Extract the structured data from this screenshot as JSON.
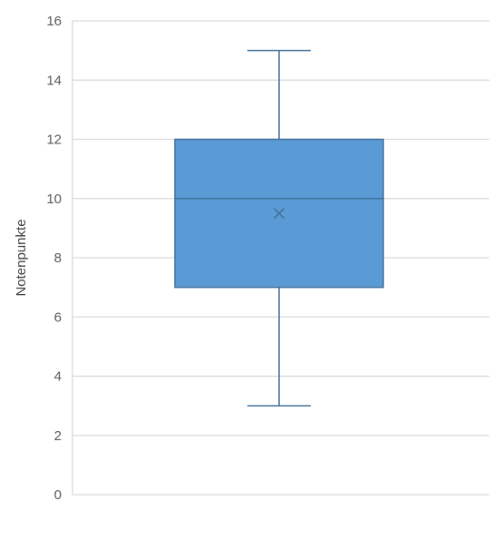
{
  "chart_data": {
    "type": "box",
    "ylabel": "Notenpunkte",
    "xlabel": "",
    "ylim": [
      0,
      16
    ],
    "yticks": [
      0,
      2,
      4,
      6,
      8,
      10,
      12,
      14,
      16
    ],
    "grid": true,
    "legend": "none",
    "box": {
      "whisker_low": 3,
      "q1": 7,
      "median": 10,
      "q3": 12,
      "whisker_high": 15,
      "mean": 9.5
    },
    "colors": {
      "box_fill": "#5b9bd5",
      "box_stroke": "#41719c",
      "whisker": "#41719c",
      "grid": "#d9d9d9",
      "axis": "#d9d9d9"
    }
  }
}
